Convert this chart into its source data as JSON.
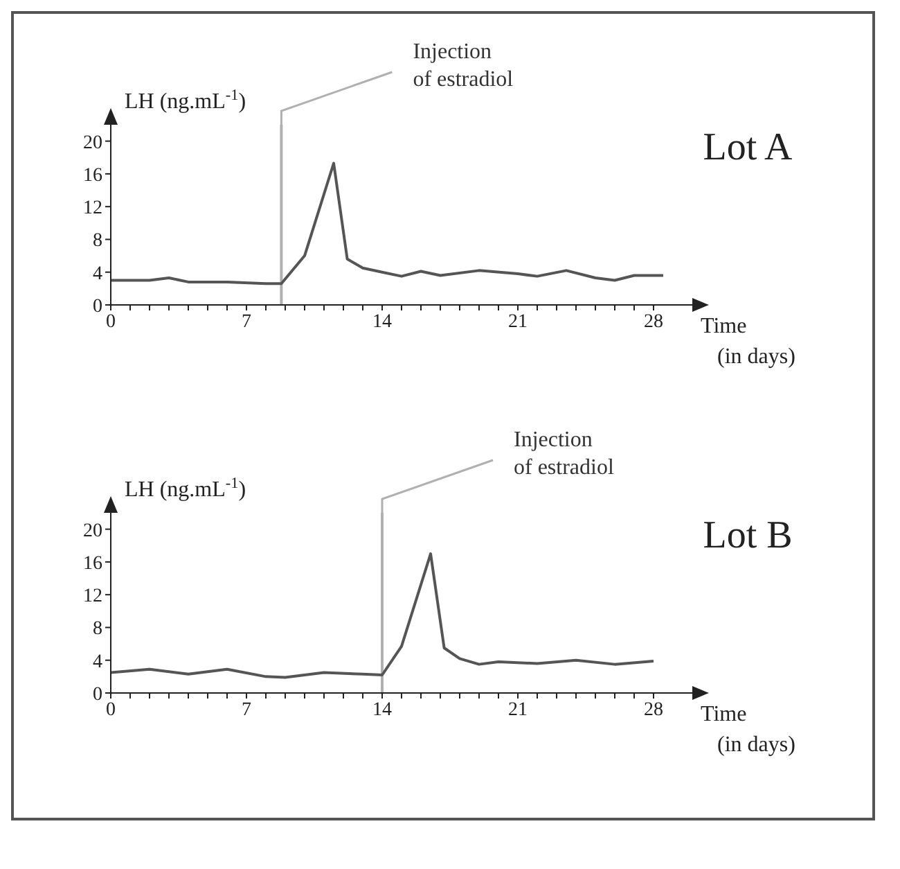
{
  "chart_data": [
    {
      "type": "line",
      "title": "Lot A",
      "ylabel": "LH (ng.mL$^{-1}$)",
      "xlabel": "Time (in days)",
      "xlim": [
        0,
        30
      ],
      "ylim": [
        0,
        22
      ],
      "xticks": [
        0,
        {
          "value": 1,
          "label": null
        },
        {
          "value": 2,
          "label": null
        },
        {
          "value": 3,
          "label": null
        },
        {
          "value": 4,
          "label": null
        },
        {
          "value": 5,
          "label": null
        },
        {
          "value": 6,
          "label": null
        },
        7,
        {
          "value": 8,
          "label": null
        },
        {
          "value": 9,
          "label": null
        },
        {
          "value": 10,
          "label": null
        },
        {
          "value": 11,
          "label": null
        },
        {
          "value": 12,
          "label": null
        },
        {
          "value": 13,
          "label": null
        },
        14,
        {
          "value": 15,
          "label": null
        },
        {
          "value": 16,
          "label": null
        },
        {
          "value": 17,
          "label": null
        },
        {
          "value": 18,
          "label": null
        },
        {
          "value": 19,
          "label": null
        },
        {
          "value": 20,
          "label": null
        },
        21,
        {
          "value": 22,
          "label": null
        },
        {
          "value": 23,
          "label": null
        },
        {
          "value": 24,
          "label": null
        },
        {
          "value": 25,
          "label": null
        },
        {
          "value": 26,
          "label": null
        },
        {
          "value": 27,
          "label": null
        },
        28
      ],
      "yticks": [
        0,
        4,
        8,
        12,
        16,
        20
      ],
      "grid": false,
      "marker": "none",
      "line_style": "solid",
      "ref_lines": [
        {
          "axis": "x",
          "value": 8.8,
          "label": "Injection of estradiol",
          "color": "#b0b0b0"
        }
      ],
      "series": [
        {
          "color": "#555555",
          "x": [
            0,
            2,
            3,
            4,
            6,
            8,
            8.8,
            10,
            11.5,
            12.2,
            13,
            14,
            15,
            16,
            17,
            19,
            21,
            22,
            23.5,
            25,
            26,
            27,
            28.5
          ],
          "values": [
            3.0,
            3.0,
            3.3,
            2.8,
            2.8,
            2.6,
            2.6,
            6.0,
            17.3,
            5.6,
            4.5,
            4.0,
            3.5,
            4.1,
            3.6,
            4.2,
            3.8,
            3.5,
            4.2,
            3.3,
            3.0,
            3.6,
            3.6
          ]
        }
      ]
    },
    {
      "type": "line",
      "title": "Lot B",
      "ylabel": "LH (ng.mL$^{-1}$)",
      "xlabel": "Time (in days)",
      "xlim": [
        0,
        30
      ],
      "ylim": [
        0,
        22
      ],
      "xticks": [
        0,
        {
          "value": 1,
          "label": null
        },
        {
          "value": 2,
          "label": null
        },
        {
          "value": 3,
          "label": null
        },
        {
          "value": 4,
          "label": null
        },
        {
          "value": 5,
          "label": null
        },
        {
          "value": 6,
          "label": null
        },
        7,
        {
          "value": 8,
          "label": null
        },
        {
          "value": 9,
          "label": null
        },
        {
          "value": 10,
          "label": null
        },
        {
          "value": 11,
          "label": null
        },
        {
          "value": 12,
          "label": null
        },
        {
          "value": 13,
          "label": null
        },
        14,
        {
          "value": 15,
          "label": null
        },
        {
          "value": 16,
          "label": null
        },
        {
          "value": 17,
          "label": null
        },
        {
          "value": 18,
          "label": null
        },
        {
          "value": 19,
          "label": null
        },
        {
          "value": 20,
          "label": null
        },
        21,
        {
          "value": 22,
          "label": null
        },
        {
          "value": 23,
          "label": null
        },
        {
          "value": 24,
          "label": null
        },
        {
          "value": 25,
          "label": null
        },
        {
          "value": 26,
          "label": null
        },
        {
          "value": 27,
          "label": null
        },
        28
      ],
      "yticks": [
        0,
        4,
        8,
        12,
        16,
        20
      ],
      "grid": false,
      "marker": "none",
      "line_style": "solid",
      "ref_lines": [
        {
          "axis": "x",
          "value": 14,
          "label": "Injection of estradiol",
          "color": "#b0b0b0"
        }
      ],
      "series": [
        {
          "color": "#555555",
          "x": [
            0,
            2,
            4,
            6,
            8,
            9,
            11,
            13,
            14,
            15,
            16.5,
            17.2,
            18,
            19,
            20,
            22,
            24,
            26,
            28
          ],
          "values": [
            2.5,
            2.9,
            2.3,
            2.9,
            2.0,
            1.9,
            2.5,
            2.3,
            2.2,
            5.7,
            17.0,
            5.5,
            4.2,
            3.5,
            3.8,
            3.6,
            4.0,
            3.5,
            3.9
          ]
        }
      ]
    }
  ]
}
